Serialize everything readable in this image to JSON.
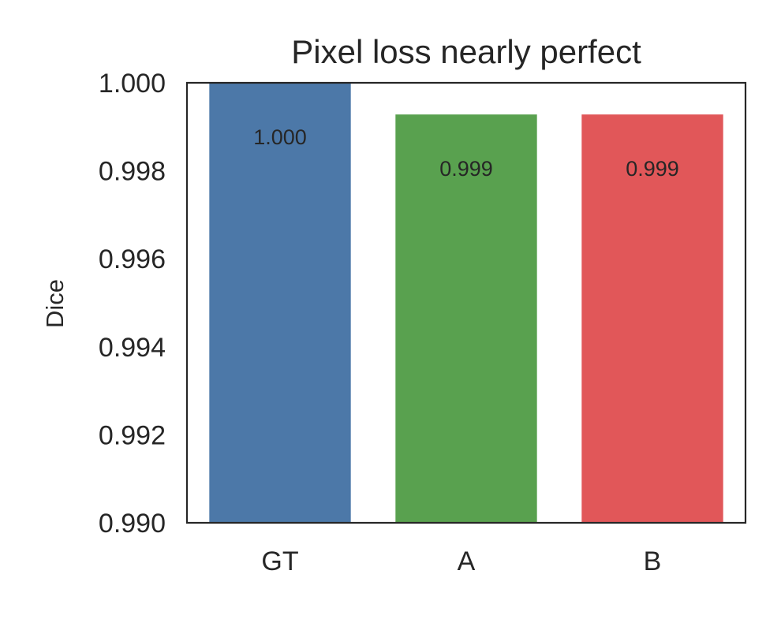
{
  "chart_data": {
    "type": "bar",
    "title": "Pixel loss nearly perfect",
    "xlabel": "",
    "ylabel": "Dice",
    "categories": [
      "GT",
      "A",
      "B"
    ],
    "values": [
      1.0,
      0.99928,
      0.99928
    ],
    "value_labels": [
      "1.000",
      "0.999",
      "0.999"
    ],
    "colors": [
      "#4c78a8",
      "#59a14f",
      "#e15759"
    ],
    "ylim": [
      0.99,
      1.0
    ],
    "yticks": [
      0.99,
      0.992,
      0.994,
      0.996,
      0.998,
      1.0
    ],
    "ytick_labels": [
      "0.990",
      "0.992",
      "0.994",
      "0.996",
      "0.998",
      "1.000"
    ],
    "grid": false,
    "legend": "none"
  }
}
